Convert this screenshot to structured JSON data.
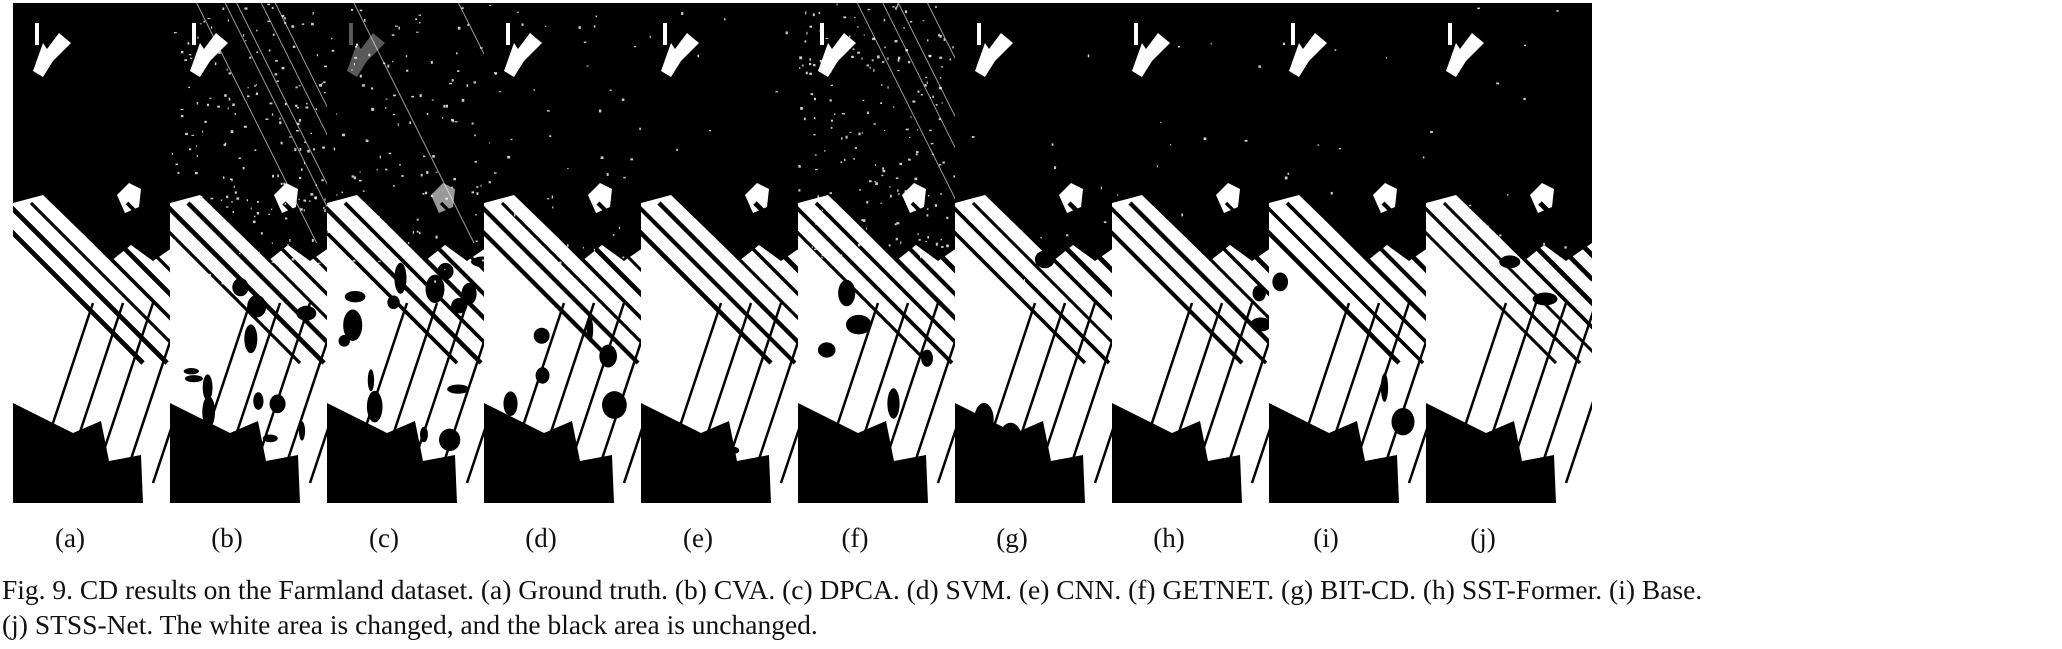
{
  "figure": {
    "panels": [
      {
        "label": "(a)",
        "method": "Ground truth",
        "noise": 0.0,
        "stripes": 0.0,
        "holes": 0.0
      },
      {
        "label": "(b)",
        "method": "CVA",
        "noise": 0.9,
        "stripes": 1.0,
        "holes": 0.55
      },
      {
        "label": "(c)",
        "method": "DPCA",
        "noise": 0.6,
        "stripes": 0.4,
        "holes": 0.75
      },
      {
        "label": "(d)",
        "method": "SVM",
        "noise": 0.25,
        "stripes": 0.0,
        "holes": 0.35
      },
      {
        "label": "(e)",
        "method": "CNN",
        "noise": 0.05,
        "stripes": 0.0,
        "holes": 0.1
      },
      {
        "label": "(f)",
        "method": "GETNET",
        "noise": 1.0,
        "stripes": 0.7,
        "holes": 0.2
      },
      {
        "label": "(g)",
        "method": "BIT-CD",
        "noise": 0.05,
        "stripes": 0.0,
        "holes": 0.15
      },
      {
        "label": "(h)",
        "method": "SST-Former",
        "noise": 0.05,
        "stripes": 0.0,
        "holes": 0.1
      },
      {
        "label": "(i)",
        "method": "Base",
        "noise": 0.05,
        "stripes": 0.0,
        "holes": 0.12
      },
      {
        "label": "(j)",
        "method": "STSS-Net",
        "noise": 0.08,
        "stripes": 0.0,
        "holes": 0.08
      }
    ],
    "caption": {
      "line1": "Fig. 9.   CD results on the Farmland dataset. (a) Ground truth. (b) CVA. (c) DPCA. (d) SVM. (e) CNN. (f) GETNET. (g) BIT-CD. (h) SST-Former. (i) Base.",
      "line2": "(j) STSS-Net. The white area is changed, and the black area is unchanged."
    },
    "colors": {
      "changed": "#ffffff",
      "unchanged": "#000000"
    }
  }
}
